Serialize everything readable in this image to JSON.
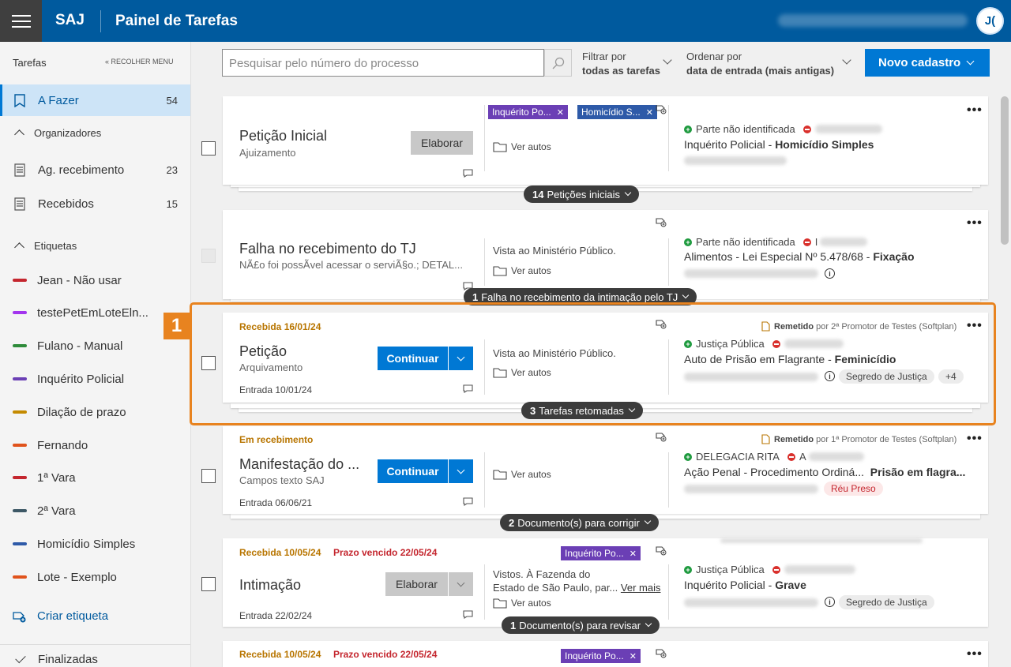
{
  "header": {
    "brand": "SAJ",
    "title": "Painel de Tarefas",
    "avatar_initials": "J("
  },
  "sidebar": {
    "heading": "Tarefas",
    "collapse_label": "RECOLHER MENU",
    "todo": {
      "label": "A Fazer",
      "count": "54"
    },
    "organizers_title": "Organizadores",
    "organizers": [
      {
        "label": "Ag. recebimento",
        "count": "23"
      },
      {
        "label": "Recebidos",
        "count": "15"
      }
    ],
    "tags_title": "Etiquetas",
    "tags": [
      {
        "label": "Jean - Não usar",
        "color": "#c4262e"
      },
      {
        "label": "testePetEmLoteEln...",
        "color": "#a335ee"
      },
      {
        "label": "Fulano - Manual",
        "color": "#2e8b3a"
      },
      {
        "label": "Inquérito Policial",
        "color": "#6b3fb5"
      },
      {
        "label": "Dilação de prazo",
        "color": "#c48a00"
      },
      {
        "label": "Fernando",
        "color": "#e0531c"
      },
      {
        "label": "1ª Vara",
        "color": "#c4262e"
      },
      {
        "label": "2ª Vara",
        "color": "#3d5866"
      },
      {
        "label": "Homicídio Simples",
        "color": "#2e5aa8"
      },
      {
        "label": "Lote - Exemplo",
        "color": "#e0531c"
      }
    ],
    "create_tag": "Criar etiqueta",
    "finalized": "Finalizadas"
  },
  "toolbar": {
    "search_placeholder": "Pesquisar pelo número do processo",
    "filter_label": "Filtrar por",
    "filter_value": "todas as tarefas",
    "order_label": "Ordenar por",
    "order_value": "data de entrada (mais antigas)",
    "new_button": "Novo cadastro"
  },
  "colors": {
    "primary": "#0078d4",
    "header": "#005a9e",
    "highlight": "#e8831f",
    "status": "#b87500",
    "due": "#c4262e"
  },
  "annotation": "1",
  "cards": [
    {
      "title": "Petição Inicial",
      "subtitle": "Ajuizamento",
      "action": "Elaborar",
      "tags": [
        {
          "label": "Inquérito Po...",
          "color": "#6b3fb5"
        },
        {
          "label": "Homicídio S...",
          "color": "#2e5aa8"
        }
      ],
      "autos": "Ver autos",
      "party": "Parte não identificada",
      "case_class": "Inquérito Policial",
      "case_subject": "Homicídio Simples",
      "group": {
        "count": "14",
        "label": "Petições iniciais"
      }
    },
    {
      "title": "Falha no recebimento do TJ",
      "subtitle": "NÃ£o foi possÃvel acessar o serviÃ§o.; DETAL...",
      "middle": "Vista ao Ministério Público.",
      "autos": "Ver autos",
      "party": "Parte não identificada",
      "party_b": "I",
      "case_class": "Alimentos - Lei Especial Nº 5.478/68",
      "case_subject": "Fixação",
      "group": {
        "count": "1",
        "label": "Falha no recebimento da intimação pelo TJ"
      }
    },
    {
      "status": "Recebida 16/01/24",
      "title": "Petição",
      "subtitle": "Arquivamento",
      "entry": "Entrada 10/01/24",
      "action": "Continuar",
      "middle": "Vista ao Ministério Público.",
      "autos": "Ver autos",
      "remit_label": "Remetido",
      "remit_by": "por 2ª Promotor de Testes (Softplan)",
      "party": "Justiça Pública",
      "case_class": "Auto de Prisão em Flagrante",
      "case_subject": "Feminicídio",
      "pill": "Segredo de Justiça",
      "extra": "+4",
      "group": {
        "count": "3",
        "label": "Tarefas retomadas"
      }
    },
    {
      "status": "Em recebimento",
      "title": "Manifestação do ...",
      "subtitle": "Campos texto SAJ",
      "entry": "Entrada 06/06/21",
      "action": "Continuar",
      "autos": "Ver autos",
      "remit_label": "Remetido",
      "remit_by": "por 1ª Promotor de Testes (Softplan)",
      "party": "DELEGACIA RITA",
      "party_b": "A",
      "case_class": "Ação Penal - Procedimento Ordiná...",
      "case_subject": "Prisão em flagra...",
      "pill": "Réu Preso",
      "group": {
        "count": "2",
        "label": "Documento(s) para corrigir"
      }
    },
    {
      "status": "Recebida 10/05/24",
      "due": "Prazo vencido 22/05/24",
      "title": "Intimação",
      "entry": "Entrada 22/02/24",
      "action": "Elaborar",
      "tags": [
        {
          "label": "Inquérito Po...",
          "color": "#6b3fb5"
        }
      ],
      "middle_1": "Vistos. À Fazenda do",
      "middle_2": "Estado de São Paulo, par...",
      "see_more": "Ver mais",
      "autos": "Ver autos",
      "party": "Justiça Pública",
      "case_class": "Inquérito Policial",
      "case_subject": "Grave",
      "pill": "Segredo de Justiça",
      "group": {
        "count": "1",
        "label": "Documento(s) para revisar"
      }
    },
    {
      "status": "Recebida 10/05/24",
      "due": "Prazo vencido 22/05/24",
      "tags": [
        {
          "label": "Inquérito Po...",
          "color": "#6b3fb5"
        }
      ]
    }
  ]
}
